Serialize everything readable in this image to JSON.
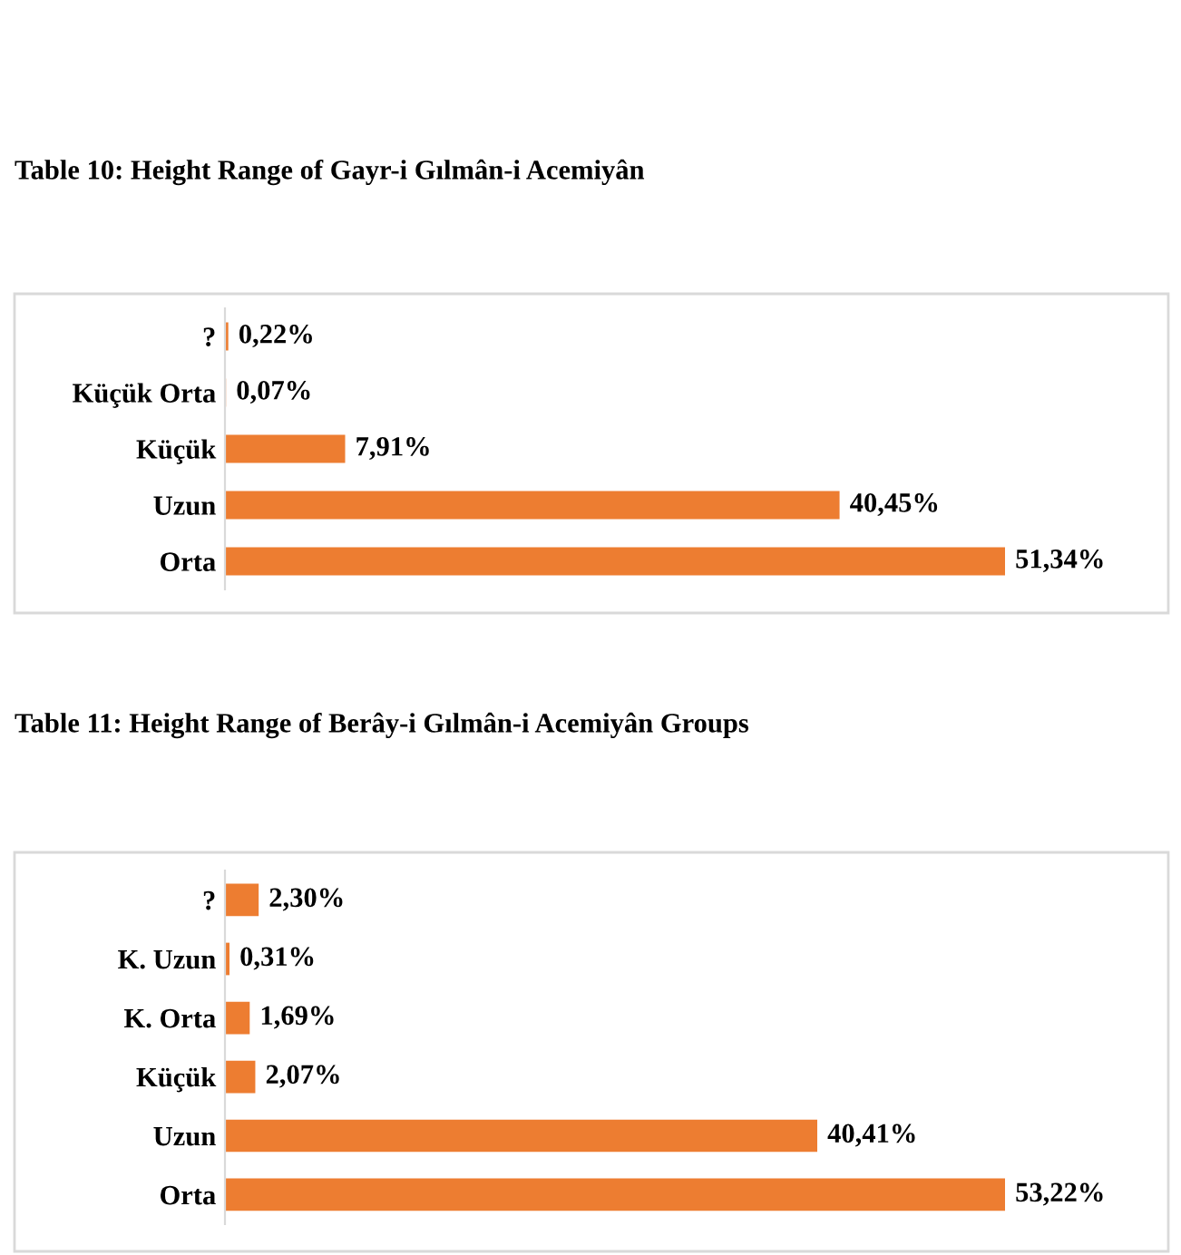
{
  "chart_data": [
    {
      "type": "bar",
      "orientation": "horizontal",
      "title": "Table 10: Height Range of Gayr-i Gılmân-i Acemiyân",
      "categories": [
        "?",
        "Küçük Orta",
        "Küçük",
        "Uzun",
        "Orta"
      ],
      "values": [
        0.22,
        0.07,
        7.91,
        40.45,
        51.34
      ],
      "value_labels": [
        "0,22%",
        "0,07%",
        "7,91%",
        "40,45%",
        "51,34%"
      ],
      "color": "#ed7d31",
      "grid": false,
      "legend": false,
      "tick_labels": "y"
    },
    {
      "type": "bar",
      "orientation": "horizontal",
      "title": "Table 11: Height Range of Berây-i Gılmân-i Acemiyân Groups",
      "categories": [
        "?",
        "K. Uzun",
        "K. Orta",
        "Küçük",
        "Uzun",
        "Orta"
      ],
      "values": [
        2.3,
        0.31,
        1.69,
        2.07,
        40.41,
        53.22
      ],
      "value_labels": [
        "2,30%",
        "0,31%",
        "1,69%",
        "2,07%",
        "40,41%",
        "53,22%"
      ],
      "color": "#ed7d31",
      "grid": false,
      "legend": false,
      "tick_labels": "y"
    }
  ]
}
